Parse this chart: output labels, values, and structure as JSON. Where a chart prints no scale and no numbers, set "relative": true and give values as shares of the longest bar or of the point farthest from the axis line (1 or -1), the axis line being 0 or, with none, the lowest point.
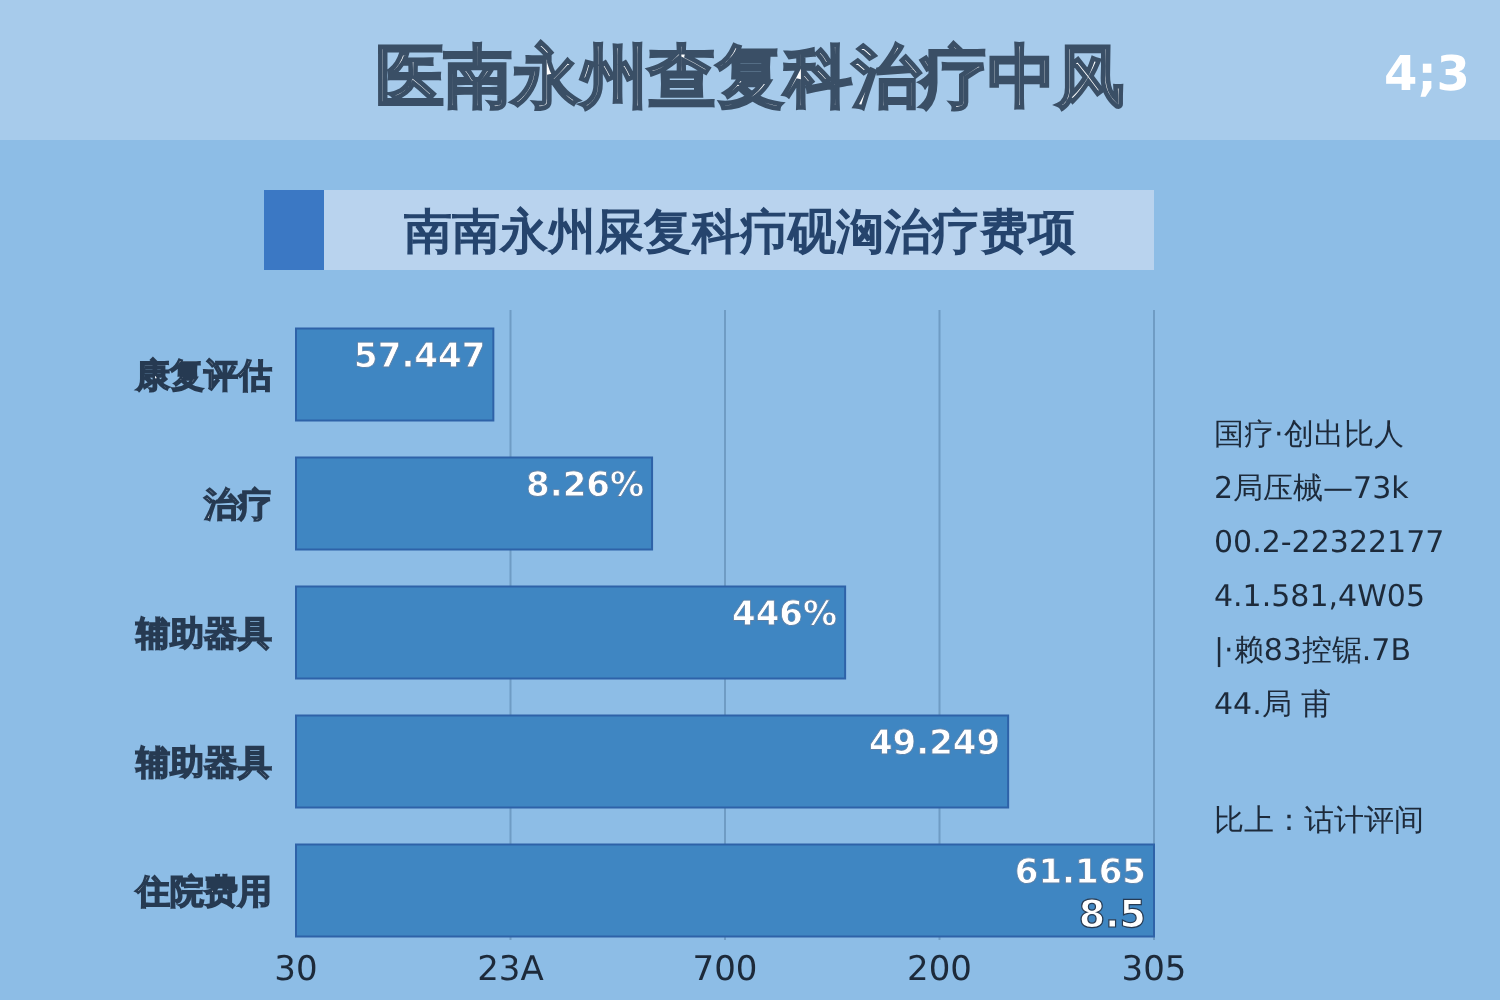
{
  "chart_data": {
    "type": "bar",
    "orientation": "horizontal",
    "relative": true,
    "title": "医南永州查复科治疗中风",
    "subtitle": "南南永州屎复科疖砚洶治疗费项",
    "categories": [
      "康复评估",
      "治疗",
      "辅助器具",
      "辅助器具",
      "住院费用"
    ],
    "values": [
      0.23,
      0.415,
      0.64,
      0.83,
      1
    ],
    "color": "#3f86c2",
    "ref_lines": [
      {
        "axis": "x",
        "value": 0.25,
        "color": "#6f9cc4"
      },
      {
        "axis": "x",
        "value": 0.5,
        "color": "#6f9cc4"
      },
      {
        "axis": "x",
        "value": 0.75,
        "color": "#6f9cc4"
      },
      {
        "axis": "x",
        "value": 1,
        "color": "#6f9cc4"
      }
    ],
    "annotations": [
      "4;3",
      "30",
      "23A",
      "700",
      "200",
      "305",
      "57.447",
      "8.26%",
      "446%",
      "49.249",
      "61.165",
      {
        "text": "8.5",
        "x": 1,
        "y": "住院费用"
      },
      "国疗·创出比人",
      "2局压械—73k",
      "00.2-22322177",
      "4.1.581,4W05",
      "|·赖83控锯.7B",
      "44.局 甫",
      "比上：诂计评间"
    ]
  }
}
